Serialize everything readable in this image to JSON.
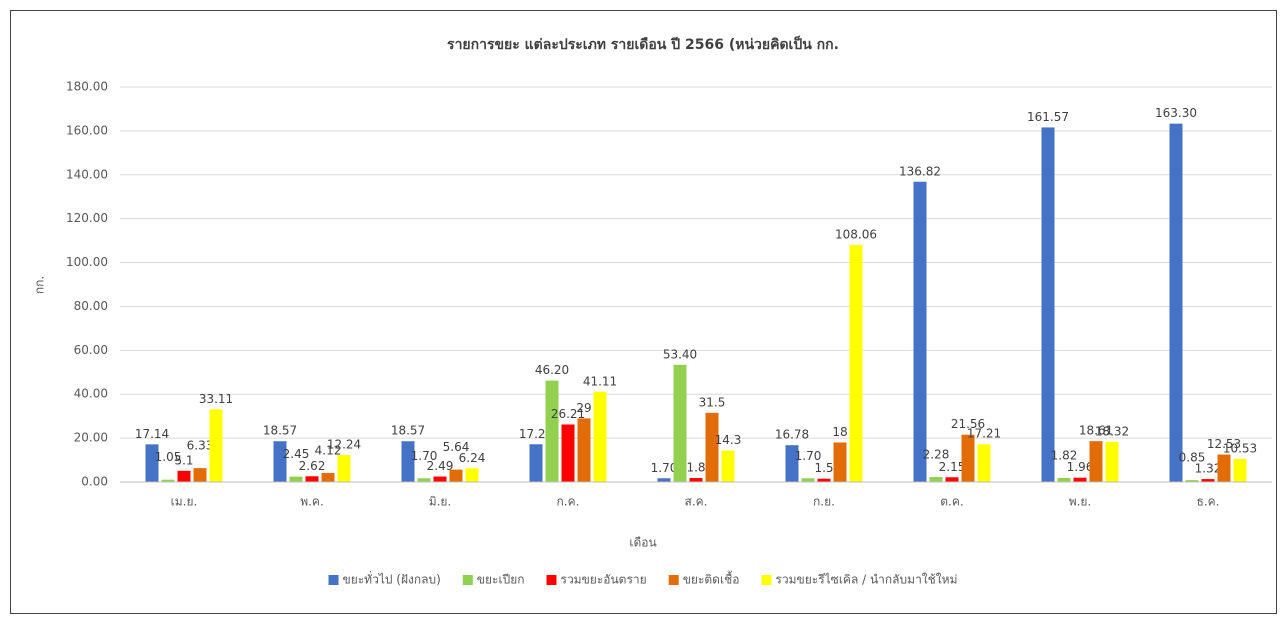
{
  "chart_data": {
    "type": "bar",
    "title": "รายการขยะ แต่ละประเภท รายเดือน ปี 2566 (หน่วยคิดเป็น กก.",
    "x_label": "เดือน",
    "y_label": "กก.",
    "categories": [
      "เม.ย.",
      "พ.ค.",
      "มิ.ย.",
      "ก.ค.",
      "ส.ค.",
      "ก.ย.",
      "ต.ค.",
      "พ.ย.",
      "ธ.ค."
    ],
    "series": [
      {
        "name": "ขยะทั่วไป (ฝังกลบ)",
        "color": "#4472c4",
        "values": [
          17.14,
          18.57,
          18.57,
          17.2,
          1.7,
          16.78,
          136.82,
          161.57,
          163.3
        ],
        "value_labels": [
          "17.14",
          "18.57",
          "18.57",
          "17.20",
          "1.70",
          "16.78",
          "136.82",
          "161.57",
          "163.30"
        ]
      },
      {
        "name": "ขยะเปียก",
        "color": "#92d050",
        "values": [
          1.05,
          2.45,
          1.7,
          46.2,
          53.4,
          1.7,
          2.28,
          1.82,
          0.85
        ],
        "value_labels": [
          "1.05",
          "2.45",
          "1.70",
          "46.20",
          "53.40",
          "1.70",
          "2.28",
          "1.82",
          "0.85"
        ]
      },
      {
        "name": "รวมขยะอันตราย",
        "color": "#ff0000",
        "values": [
          5.1,
          2.62,
          2.49,
          26.21,
          1.8,
          1.5,
          2.15,
          1.96,
          1.32
        ],
        "value_labels": [
          "5.1",
          "2.62",
          "2.49",
          "26.21",
          "1.8",
          "1.5",
          "2.15",
          "1.96",
          "1.32"
        ]
      },
      {
        "name": "ขยะติดเชื้อ",
        "color": "#e36c09",
        "values": [
          6.33,
          4.12,
          5.64,
          29,
          31.5,
          18,
          21.56,
          18.61,
          12.53
        ],
        "value_labels": [
          "6.33",
          "4.12",
          "5.64",
          "29",
          "31.5",
          "18",
          "21.56",
          "18.61",
          "12.53"
        ]
      },
      {
        "name": "รวมขยะรีไซเคิล / นำกลับมาใช้ใหม่",
        "color": "#ffff00",
        "values": [
          33.11,
          12.24,
          6.24,
          41.11,
          14.3,
          108.06,
          17.21,
          18.32,
          10.53
        ],
        "value_labels": [
          "33.11",
          "12.24",
          "6.24",
          "41.11",
          "14.3",
          "108.06",
          "17.21",
          "18.32",
          "10.53"
        ]
      }
    ],
    "ylim": [
      0,
      180
    ],
    "yticks": [
      {
        "value": 0,
        "label": "0.00"
      },
      {
        "value": 20,
        "label": "20.00"
      },
      {
        "value": 40,
        "label": "40.00"
      },
      {
        "value": 60,
        "label": "60.00"
      },
      {
        "value": 80,
        "label": "80.00"
      },
      {
        "value": 100,
        "label": "100.00"
      },
      {
        "value": 120,
        "label": "120.00"
      },
      {
        "value": 140,
        "label": "140.00"
      },
      {
        "value": 160,
        "label": "160.00"
      },
      {
        "value": 180,
        "label": "180.00"
      }
    ],
    "grid": true,
    "legend": "bottom"
  }
}
